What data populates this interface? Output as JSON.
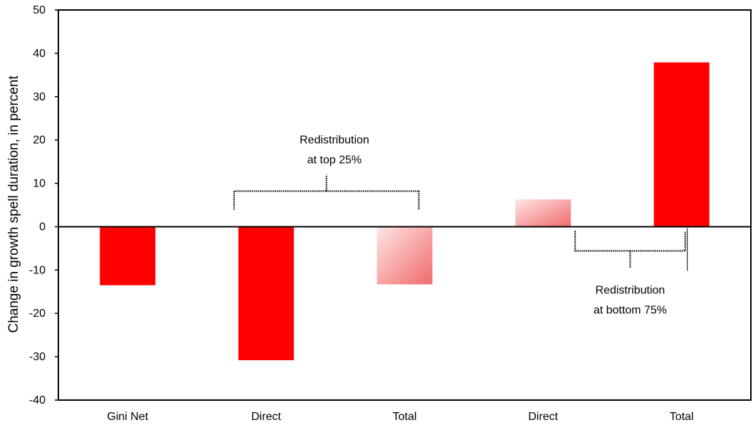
{
  "chart_data": {
    "type": "bar",
    "categories": [
      "Gini Net",
      "Direct",
      "Total",
      "Direct",
      "Total"
    ],
    "values": [
      -13.5,
      -30.8,
      -13.3,
      6.3,
      37.9
    ],
    "colors": [
      "#ff0000",
      "#ff0000",
      "gradient-pink",
      "gradient-pink",
      "#ff0000"
    ],
    "ylabel": "Change in growth spell duration, in percent",
    "xlabel": "",
    "ylim": [
      -40,
      50
    ],
    "yticks": [
      -40,
      -30,
      -20,
      -10,
      0,
      10,
      20,
      30,
      40,
      50
    ],
    "ytick_labels": [
      "-40",
      "-30",
      "-20",
      "-10",
      "0",
      "10",
      "20",
      "30",
      "40",
      "50"
    ],
    "grid": false,
    "annotations": [
      {
        "line1": "Redistribution",
        "line2": "at top 25%",
        "bracket": "above",
        "spans": [
          1,
          2
        ]
      },
      {
        "line1": "Redistribution",
        "line2": "at bottom 75%",
        "bracket": "below",
        "spans": [
          3,
          4
        ]
      }
    ]
  }
}
